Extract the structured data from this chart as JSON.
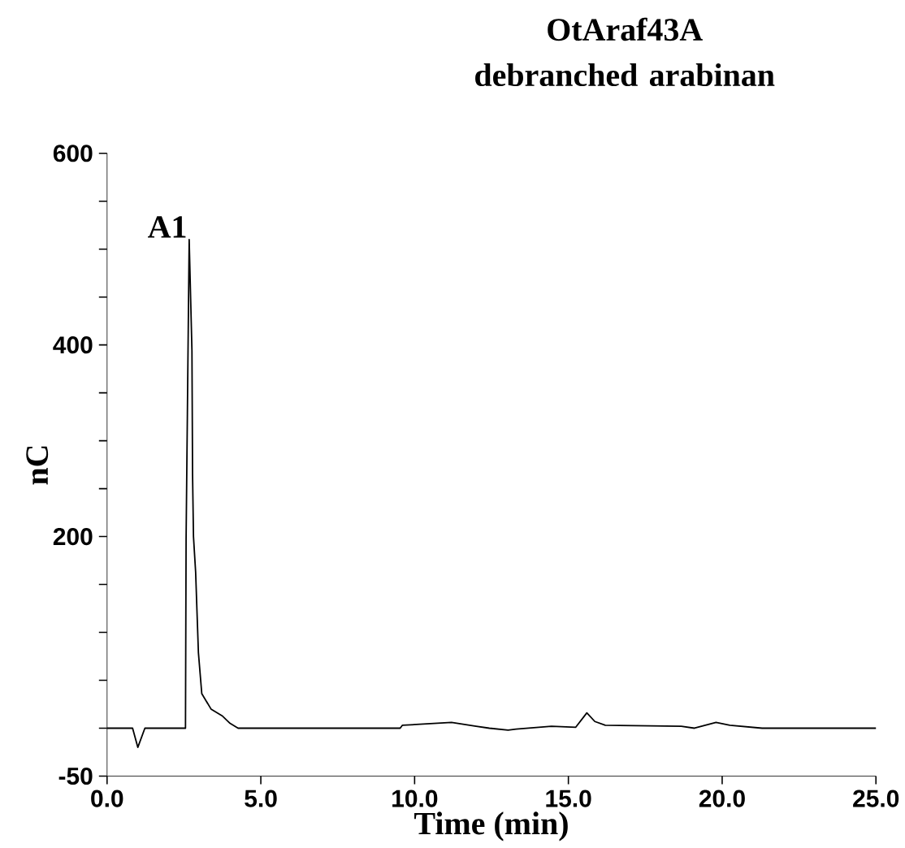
{
  "chart_data": {
    "type": "line",
    "title": "OtAraf43A debranched arabinan",
    "xlabel": "Time (min)",
    "ylabel": "nC",
    "x": [
      0,
      0.83,
      1.0,
      1.23,
      2.55,
      2.57,
      2.67,
      2.76,
      2.78,
      2.81,
      2.88,
      2.97,
      3.08,
      3.38,
      3.74,
      4.0,
      4.26,
      9.53,
      9.6,
      11.2,
      12.0,
      12.43,
      13.04,
      13.3,
      14.45,
      15.24,
      15.6,
      15.86,
      16.2,
      18.67,
      19.1,
      19.8,
      20.25,
      21.3,
      25.0
    ],
    "values": [
      0,
      0,
      -20,
      0,
      0,
      197,
      510,
      394,
      265,
      200,
      163,
      79,
      36,
      20,
      13,
      5,
      0,
      0,
      3,
      6,
      2,
      0,
      -2,
      -1,
      2,
      1,
      16,
      7,
      3,
      2,
      0,
      6,
      3,
      0,
      0
    ],
    "color": "#000000",
    "xlim": [
      0,
      25
    ],
    "ylim": [
      -50,
      600
    ],
    "xticks": [
      {
        "value": 0,
        "label": "0.0"
      },
      {
        "value": 5,
        "label": "5.0"
      },
      {
        "value": 10,
        "label": "10.0"
      },
      {
        "value": 15,
        "label": "15.0"
      },
      {
        "value": 20,
        "label": "20.0"
      },
      {
        "value": 25,
        "label": "25.0"
      }
    ],
    "yticks": [
      -50,
      {
        "value": 0,
        "label": null
      },
      {
        "value": 50,
        "label": null
      },
      {
        "value": 100,
        "label": null
      },
      {
        "value": 150,
        "label": null
      },
      200,
      {
        "value": 250,
        "label": null
      },
      {
        "value": 300,
        "label": null
      },
      {
        "value": 350,
        "label": null
      },
      400,
      {
        "value": 450,
        "label": null
      },
      {
        "value": 500,
        "label": null
      },
      {
        "value": 550,
        "label": null
      },
      600
    ],
    "annotations": [
      {
        "text": "A1",
        "x": 2.67,
        "y": 510
      }
    ]
  }
}
